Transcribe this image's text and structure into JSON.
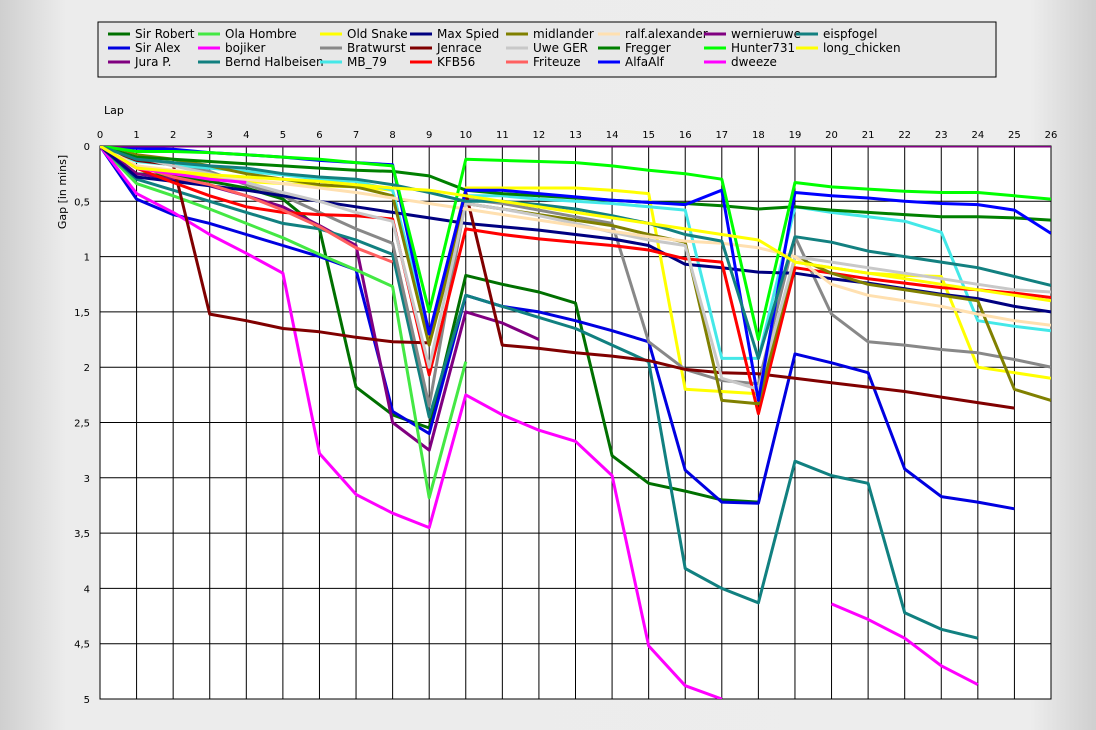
{
  "chart_data": {
    "type": "line",
    "xlabel": "Lap",
    "ylabel": "Gap [in mins]",
    "x": [
      0,
      1,
      2,
      3,
      4,
      5,
      6,
      7,
      8,
      9,
      10,
      11,
      12,
      13,
      14,
      15,
      16,
      17,
      18,
      19,
      20,
      21,
      22,
      23,
      24,
      25,
      26
    ],
    "xlim": [
      0,
      26
    ],
    "ylim": [
      0,
      5
    ],
    "y_inverted": true,
    "y_ticks": [
      0,
      0.5,
      1,
      1.5,
      2,
      2.5,
      3,
      3.5,
      4,
      4.5,
      5
    ],
    "y_tick_labels": [
      "0",
      "0,5",
      "1",
      "1,5",
      "2",
      "2,5",
      "3",
      "3,5",
      "4",
      "4,5",
      "5"
    ],
    "grid": true,
    "legend_position": "top",
    "series": [
      {
        "name": "Sir Robert",
        "color": "#007000",
        "values": [
          0,
          0.25,
          0.27,
          0.32,
          0.38,
          0.48,
          0.75,
          2.18,
          2.43,
          2.55,
          1.17,
          1.25,
          1.32,
          1.42,
          2.8,
          3.05,
          3.12,
          3.2,
          3.22,
          null,
          null,
          null,
          null,
          null,
          null,
          null,
          null
        ]
      },
      {
        "name": "Sir Alex",
        "color": "#0000e0",
        "values": [
          0,
          0.48,
          0.62,
          0.7,
          0.8,
          0.9,
          1.0,
          1.12,
          2.4,
          2.6,
          1.35,
          1.45,
          1.5,
          1.58,
          1.67,
          1.77,
          2.93,
          3.22,
          3.23,
          1.88,
          1.96,
          2.05,
          2.92,
          3.17,
          3.22,
          3.28,
          null
        ]
      },
      {
        "name": "Jura P.",
        "color": "#800080",
        "values": [
          0,
          0.25,
          0.3,
          0.36,
          0.45,
          0.55,
          0.72,
          0.9,
          2.5,
          2.75,
          1.5,
          1.6,
          1.75,
          null,
          null,
          null,
          null,
          null,
          null,
          null,
          null,
          null,
          null,
          null,
          null,
          null,
          null
        ]
      },
      {
        "name": "Ola Hombre",
        "color": "#44e844",
        "values": [
          0,
          0.34,
          0.45,
          0.57,
          0.7,
          0.83,
          0.98,
          1.12,
          1.27,
          3.18,
          1.95,
          null,
          null,
          null,
          null,
          null,
          null,
          null,
          null,
          null,
          null,
          null,
          null,
          null,
          null,
          null,
          null
        ]
      },
      {
        "name": "bojiker",
        "color": "#ff00ff",
        "values": [
          0,
          0.43,
          0.6,
          0.8,
          0.97,
          1.15,
          2.78,
          3.15,
          3.32,
          3.45,
          2.25,
          2.43,
          2.57,
          2.67,
          2.98,
          4.52,
          4.88,
          5.0,
          null,
          null,
          4.14,
          4.28,
          4.45,
          4.7,
          4.87,
          null,
          null
        ]
      },
      {
        "name": "Bernd Halbeisen",
        "color": "#118080",
        "values": [
          0,
          0.3,
          0.4,
          0.5,
          0.6,
          0.7,
          0.75,
          0.85,
          0.98,
          2.45,
          1.35,
          1.45,
          1.55,
          1.65,
          1.8,
          1.95,
          3.82,
          4.0,
          4.13,
          2.85,
          2.98,
          3.05,
          4.22,
          4.37,
          4.45,
          null,
          null
        ]
      },
      {
        "name": "Old Snake",
        "color": "#ffff00",
        "values": [
          0,
          0.18,
          0.23,
          0.28,
          0.32,
          0.34,
          0.36,
          0.37,
          0.4,
          1.75,
          0.38,
          0.38,
          0.38,
          0.38,
          0.4,
          0.43,
          2.2,
          2.22,
          2.24,
          1.05,
          1.1,
          1.15,
          1.17,
          1.18,
          2.0,
          2.05,
          2.1
        ]
      },
      {
        "name": "Bratwurst",
        "color": "#888888",
        "values": [
          0,
          0.1,
          0.17,
          0.23,
          0.35,
          0.45,
          0.6,
          0.75,
          0.88,
          2.35,
          0.48,
          0.52,
          0.58,
          0.64,
          0.7,
          1.77,
          2.02,
          2.12,
          2.15,
          0.82,
          1.52,
          1.77,
          1.8,
          1.84,
          1.87,
          1.93,
          2.0
        ]
      },
      {
        "name": "MB_79",
        "color": "#44e8e8",
        "values": [
          0,
          0.14,
          0.17,
          0.2,
          0.23,
          0.26,
          0.3,
          0.32,
          0.4,
          1.7,
          0.45,
          0.45,
          0.48,
          0.5,
          0.52,
          0.55,
          0.58,
          1.92,
          1.92,
          0.55,
          0.6,
          0.64,
          0.68,
          0.78,
          1.58,
          1.63,
          1.67
        ]
      },
      {
        "name": "Max Spied",
        "color": "#000080",
        "values": [
          0,
          0.28,
          0.32,
          0.36,
          0.4,
          0.45,
          0.5,
          0.55,
          0.6,
          0.65,
          0.7,
          0.73,
          0.76,
          0.8,
          0.84,
          0.9,
          1.07,
          1.1,
          1.14,
          1.15,
          1.2,
          1.24,
          1.29,
          1.34,
          1.38,
          1.45,
          1.5
        ]
      },
      {
        "name": "Jenrace",
        "color": "#800000",
        "values": [
          0,
          0.13,
          0.17,
          1.52,
          1.58,
          1.65,
          1.68,
          1.73,
          1.77,
          1.78,
          0.42,
          1.8,
          1.83,
          1.87,
          1.9,
          1.94,
          2.02,
          2.05,
          2.06,
          2.1,
          2.14,
          2.18,
          2.22,
          2.27,
          2.32,
          2.37,
          null
        ]
      },
      {
        "name": "KFB56",
        "color": "#ff0000",
        "values": [
          0,
          0.2,
          0.33,
          0.45,
          0.55,
          0.6,
          0.62,
          0.63,
          0.66,
          2.07,
          0.75,
          0.8,
          0.84,
          0.87,
          0.9,
          0.94,
          1.02,
          1.05,
          2.42,
          1.1,
          1.15,
          1.2,
          1.24,
          1.28,
          1.3,
          1.33,
          1.37
        ]
      },
      {
        "name": "midlander",
        "color": "#808000",
        "values": [
          0,
          0.08,
          0.12,
          0.18,
          0.25,
          0.3,
          0.35,
          0.37,
          0.45,
          1.8,
          0.52,
          0.57,
          0.62,
          0.67,
          0.72,
          0.8,
          0.87,
          2.3,
          2.33,
          1.0,
          1.15,
          1.25,
          1.3,
          1.35,
          1.4,
          2.2,
          2.3
        ]
      },
      {
        "name": "Uwe GER",
        "color": "#c8c8c8",
        "values": [
          0,
          0.1,
          0.18,
          0.25,
          0.33,
          0.42,
          0.5,
          0.6,
          0.68,
          2.0,
          0.52,
          0.57,
          0.63,
          0.7,
          0.78,
          0.85,
          0.9,
          2.1,
          2.2,
          1.0,
          1.05,
          1.1,
          1.15,
          1.2,
          1.25,
          1.3,
          1.32
        ]
      },
      {
        "name": "Friteuze",
        "color": "#ff6060",
        "values": [
          0,
          0.18,
          0.28,
          0.35,
          0.45,
          0.58,
          0.73,
          0.92,
          1.05,
          null,
          null,
          null,
          null,
          null,
          null,
          null,
          null,
          null,
          null,
          null,
          null,
          null,
          null,
          null,
          null,
          null,
          null
        ]
      },
      {
        "name": "ralf.alexander",
        "color": "#ffe0b0",
        "values": [
          0,
          0.18,
          0.22,
          0.26,
          0.3,
          0.34,
          0.38,
          0.42,
          0.47,
          0.52,
          0.57,
          0.62,
          0.67,
          0.72,
          0.77,
          0.82,
          0.86,
          0.88,
          0.92,
          1.0,
          1.25,
          1.35,
          1.4,
          1.45,
          1.52,
          1.58,
          1.62
        ]
      },
      {
        "name": "Fregger",
        "color": "#008000",
        "values": [
          0,
          0.1,
          0.12,
          0.14,
          0.16,
          0.18,
          0.2,
          0.22,
          0.23,
          0.27,
          0.4,
          0.43,
          0.45,
          0.47,
          0.49,
          0.51,
          0.52,
          0.54,
          0.57,
          0.55,
          0.58,
          0.6,
          0.62,
          0.64,
          0.64,
          0.65,
          0.67
        ]
      },
      {
        "name": "AlfaAlf",
        "color": "#0000ff",
        "values": [
          0,
          0.02,
          0.03,
          0.06,
          0.08,
          0.1,
          0.13,
          0.15,
          0.17,
          1.7,
          0.4,
          0.4,
          0.43,
          0.46,
          0.49,
          0.51,
          0.53,
          0.4,
          2.3,
          0.42,
          0.45,
          0.47,
          0.5,
          0.52,
          0.53,
          0.58,
          0.79
        ]
      },
      {
        "name": "wernieruwe",
        "color": "#800080",
        "values": [
          0,
          0,
          0,
          0,
          0,
          0,
          0,
          0,
          0,
          0,
          0,
          0,
          0,
          0,
          0,
          0,
          0,
          0,
          0,
          0,
          0,
          0,
          0,
          0,
          0,
          0,
          0
        ]
      },
      {
        "name": "Hunter731",
        "color": "#00ff00",
        "values": [
          0,
          0.05,
          0.05,
          0.06,
          0.08,
          0.1,
          0.12,
          0.15,
          0.18,
          1.5,
          0.12,
          0.13,
          0.14,
          0.15,
          0.18,
          0.22,
          0.25,
          0.3,
          1.75,
          0.33,
          0.37,
          0.39,
          0.41,
          0.42,
          0.42,
          0.45,
          0.48
        ]
      },
      {
        "name": "dweeze",
        "color": "#ff00ff",
        "values": [
          0,
          0.2,
          0.25,
          0.3,
          0.33,
          null,
          null,
          null,
          null,
          null,
          null,
          null,
          null,
          null,
          null,
          null,
          null,
          null,
          null,
          null,
          null,
          null,
          null,
          null,
          null,
          null,
          null
        ]
      },
      {
        "name": "eispfogel",
        "color": "#128080",
        "values": [
          0,
          0.12,
          0.15,
          0.18,
          0.2,
          0.25,
          0.28,
          0.3,
          0.35,
          0.42,
          0.5,
          0.5,
          0.53,
          0.57,
          0.63,
          0.7,
          0.8,
          0.86,
          1.92,
          0.82,
          0.87,
          0.95,
          1.0,
          1.05,
          1.1,
          1.18,
          1.26
        ]
      },
      {
        "name": "long_chicken",
        "color": "#ffff00",
        "values": [
          0,
          0.2,
          0.23,
          0.26,
          0.28,
          0.3,
          0.32,
          0.35,
          0.38,
          0.4,
          0.45,
          0.5,
          0.55,
          0.6,
          0.65,
          0.7,
          0.75,
          0.8,
          0.85,
          1.05,
          1.1,
          1.15,
          1.2,
          1.25,
          1.3,
          1.35,
          1.4
        ]
      }
    ]
  }
}
